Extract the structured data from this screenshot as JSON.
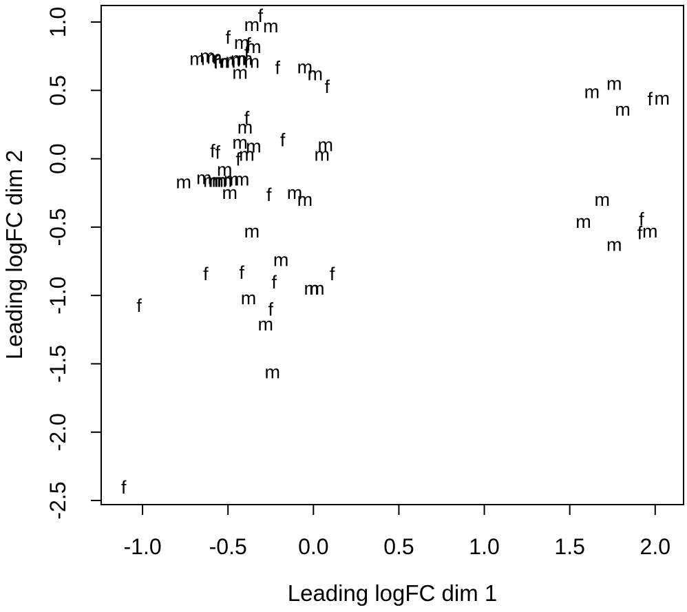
{
  "chart_data": {
    "type": "scatter",
    "title": "",
    "xlabel": "Leading logFC dim 1",
    "ylabel": "Leading logFC dim 2",
    "xlim": [
      -1.242,
      2.166
    ],
    "ylim": [
      -2.53,
      1.121
    ],
    "grid": false,
    "legend": "none",
    "background_color": "#ffffff",
    "foreground_color": "#000000",
    "x_ticks": {
      "values": [
        -1.0,
        -0.5,
        0.0,
        0.5,
        1.0,
        1.5,
        2.0
      ],
      "labels": [
        "-1.0",
        "-0.5",
        "0.0",
        "0.5",
        "1.0",
        "1.5",
        "2.0"
      ]
    },
    "y_ticks": {
      "values": [
        1.0,
        0.5,
        0.0,
        -0.5,
        -1.0,
        -1.5,
        -2.0,
        -2.5
      ],
      "labels": [
        "1.0",
        "0.5",
        "0.0",
        "-0.5",
        "-1.0",
        "-1.5",
        "-2.0",
        "-2.5"
      ]
    },
    "series": [
      {
        "name": "m",
        "glyph": "m",
        "points": [
          [
            -0.36,
            0.97
          ],
          [
            -0.25,
            0.96
          ],
          [
            -0.42,
            0.84
          ],
          [
            -0.35,
            0.81
          ],
          [
            -0.68,
            0.72
          ],
          [
            -0.62,
            0.74
          ],
          [
            -0.58,
            0.73
          ],
          [
            -0.54,
            0.7
          ],
          [
            -0.5,
            0.7
          ],
          [
            -0.47,
            0.71
          ],
          [
            -0.44,
            0.72
          ],
          [
            -0.4,
            0.72
          ],
          [
            -0.36,
            0.7
          ],
          [
            -0.43,
            0.62
          ],
          [
            -0.05,
            0.66
          ],
          [
            0.01,
            0.61
          ],
          [
            1.63,
            0.48
          ],
          [
            1.76,
            0.54
          ],
          [
            1.81,
            0.35
          ],
          [
            2.04,
            0.43
          ],
          [
            -0.4,
            0.22
          ],
          [
            -0.43,
            0.11
          ],
          [
            -0.35,
            0.08
          ],
          [
            -0.39,
            0.02
          ],
          [
            0.07,
            0.09
          ],
          [
            0.05,
            0.02
          ],
          [
            -0.52,
            -0.09
          ],
          [
            -0.76,
            -0.18
          ],
          [
            -0.64,
            -0.15
          ],
          [
            -0.6,
            -0.17
          ],
          [
            -0.57,
            -0.17
          ],
          [
            -0.55,
            -0.17
          ],
          [
            -0.52,
            -0.17
          ],
          [
            -0.48,
            -0.16
          ],
          [
            -0.42,
            -0.16
          ],
          [
            -0.49,
            -0.26
          ],
          [
            -0.11,
            -0.26
          ],
          [
            -0.05,
            -0.31
          ],
          [
            -0.36,
            -0.54
          ],
          [
            -0.19,
            -0.75
          ],
          [
            -0.01,
            -0.96
          ],
          [
            0.02,
            -0.96
          ],
          [
            -0.38,
            -1.03
          ],
          [
            -0.28,
            -1.22
          ],
          [
            -0.24,
            -1.57
          ],
          [
            1.69,
            -0.31
          ],
          [
            1.58,
            -0.47
          ],
          [
            1.97,
            -0.54
          ],
          [
            1.76,
            -0.64
          ]
        ]
      },
      {
        "name": "f",
        "glyph": "f",
        "points": [
          [
            -0.31,
            1.05
          ],
          [
            -0.5,
            0.89
          ],
          [
            -0.38,
            0.84
          ],
          [
            -0.39,
            0.78
          ],
          [
            -0.57,
            0.71
          ],
          [
            -0.21,
            0.67
          ],
          [
            0.08,
            0.53
          ],
          [
            1.97,
            0.44
          ],
          [
            -0.39,
            0.3
          ],
          [
            -0.18,
            0.14
          ],
          [
            -0.59,
            0.06
          ],
          [
            -0.56,
            0.05
          ],
          [
            -0.44,
            0.0
          ],
          [
            -0.26,
            -0.26
          ],
          [
            -0.63,
            -0.84
          ],
          [
            -0.42,
            -0.83
          ],
          [
            -0.23,
            -0.9
          ],
          [
            0.11,
            -0.84
          ],
          [
            -1.02,
            -1.07
          ],
          [
            -0.25,
            -1.1
          ],
          [
            1.92,
            -0.44
          ],
          [
            1.91,
            -0.54
          ],
          [
            -1.11,
            -2.4
          ]
        ]
      }
    ]
  }
}
